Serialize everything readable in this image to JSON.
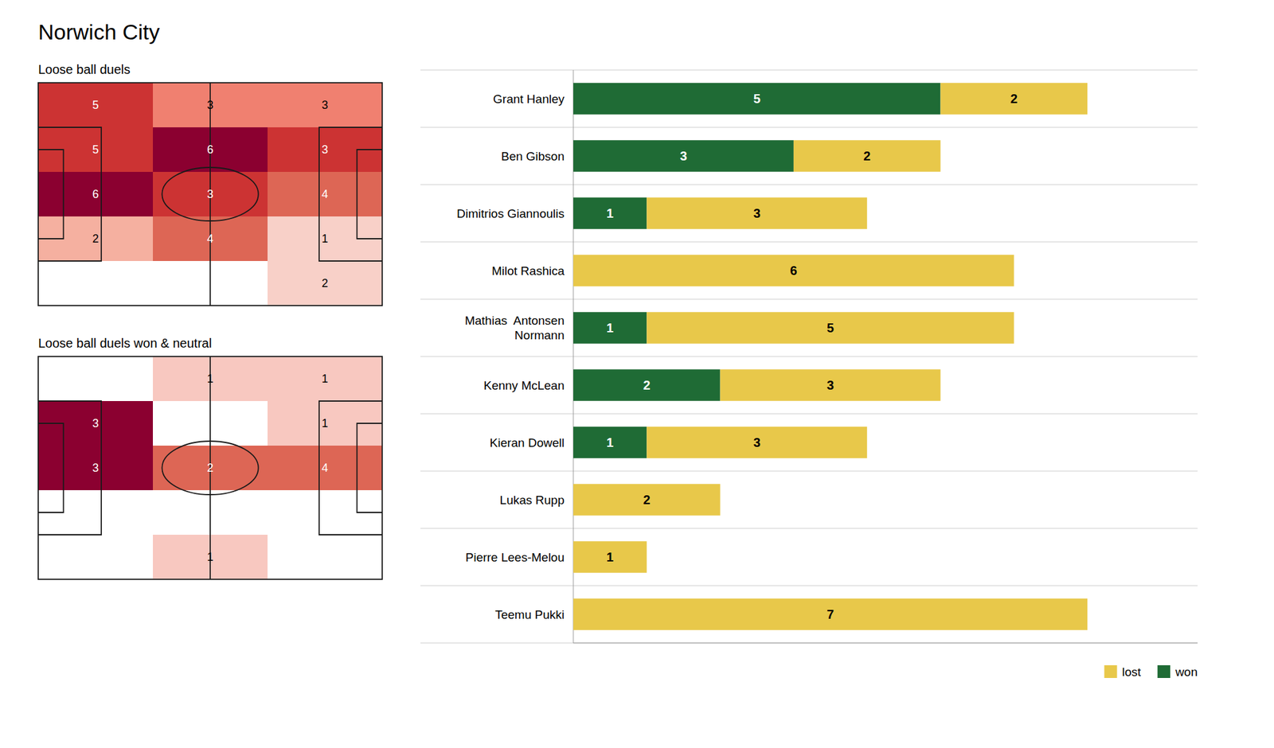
{
  "chart_data": [
    {
      "type": "heatmap",
      "title": "Norwich City",
      "subtitle": "Loose ball duels",
      "values": [
        [
          5,
          3,
          3
        ],
        [
          5,
          6,
          3
        ],
        [
          6,
          3,
          4
        ],
        [
          2,
          4,
          1
        ],
        [
          0,
          0,
          2
        ]
      ],
      "value_labels": [
        [
          "5",
          "3",
          "3"
        ],
        [
          "5",
          "6",
          "3"
        ],
        [
          "6",
          "3",
          "4"
        ],
        [
          "2",
          "4",
          "1"
        ],
        [
          null,
          null,
          "2"
        ]
      ],
      "colors": [
        [
          "#cc3333",
          "#f08070",
          "#f08070"
        ],
        [
          "#cc3333",
          "#8b0030",
          "#cc3333"
        ],
        [
          "#8b0030",
          "#cc3333",
          "#dd6655"
        ],
        [
          "#f5b0a0",
          "#dd6655",
          "#f8d0c8"
        ],
        [
          "#ffffff",
          "#ffffff",
          "#f8d0c8"
        ]
      ],
      "color": "#1a1a1a"
    },
    {
      "type": "heatmap",
      "subtitle": "Loose ball duels won & neutral",
      "values": [
        [
          0,
          1,
          1
        ],
        [
          3,
          0,
          1
        ],
        [
          3,
          2,
          4
        ],
        [
          0,
          0,
          0
        ],
        [
          0,
          1,
          0
        ]
      ],
      "value_labels": [
        [
          null,
          "1",
          "1"
        ],
        [
          "3",
          null,
          "1"
        ],
        [
          "3",
          "2",
          "4"
        ],
        [
          null,
          null,
          null
        ],
        [
          null,
          "1",
          null
        ]
      ],
      "colors": [
        [
          "#ffffff",
          "#f8c8c0",
          "#f8c8c0"
        ],
        [
          "#8b0030",
          "#ffffff",
          "#f8c8c0"
        ],
        [
          "#8b0030",
          "#dd6655",
          "#dd6655"
        ],
        [
          "#ffffff",
          "#ffffff",
          "#ffffff"
        ],
        [
          "#ffffff",
          "#f8c8c0",
          "#ffffff"
        ]
      ],
      "color": "#1a1a1a"
    },
    {
      "type": "bar",
      "orientation": "horizontal",
      "stacked": true,
      "categories": [
        "Grant Hanley",
        "Ben Gibson",
        "Dimitrios Giannoulis",
        "Milot Rashica",
        "Mathias  Antonsen\nNormann",
        "Kenny McLean",
        "Kieran Dowell",
        "Lukas Rupp",
        "Pierre Lees-Melou",
        "Teemu Pukki"
      ],
      "series": [
        {
          "name": "won",
          "color": "#1f6b35",
          "values": [
            5,
            3,
            1,
            0,
            1,
            2,
            1,
            0,
            0,
            0
          ]
        },
        {
          "name": "lost",
          "color": "#e8c84a",
          "values": [
            2,
            2,
            3,
            6,
            5,
            3,
            3,
            2,
            1,
            7
          ]
        }
      ],
      "xlim": [
        0,
        8.5
      ],
      "data_labels": true,
      "legend": "lower right",
      "tick_labels": "y"
    }
  ]
}
